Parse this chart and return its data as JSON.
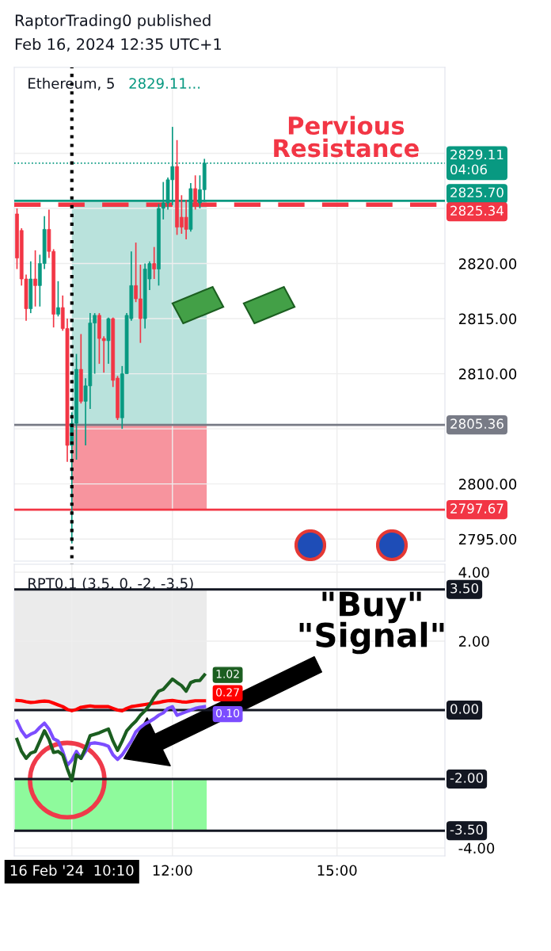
{
  "chart_data": [
    {
      "type": "candlestick",
      "title": "RaptorTrading0 published",
      "subtitle": "Feb 16, 2024 12:35 UTC+1",
      "annotations": [
        "Ethereum, 5",
        "2829.11...",
        "Pervious Resistance"
      ],
      "x": [
        "2024-02-16T09:10",
        "2024-02-16T09:15",
        "2024-02-16T09:20",
        "2024-02-16T09:25",
        "2024-02-16T09:30",
        "2024-02-16T09:35",
        "2024-02-16T09:40",
        "2024-02-16T09:45",
        "2024-02-16T09:50",
        "2024-02-16T09:55",
        "2024-02-16T10:00",
        "2024-02-16T10:05",
        "2024-02-16T10:10",
        "2024-02-16T10:15",
        "2024-02-16T10:20",
        "2024-02-16T10:25",
        "2024-02-16T10:30",
        "2024-02-16T10:35",
        "2024-02-16T10:40",
        "2024-02-16T10:45",
        "2024-02-16T10:50",
        "2024-02-16T10:55",
        "2024-02-16T11:00",
        "2024-02-16T11:05",
        "2024-02-16T11:10",
        "2024-02-16T11:15",
        "2024-02-16T11:20",
        "2024-02-16T11:25",
        "2024-02-16T11:30",
        "2024-02-16T11:35",
        "2024-02-16T11:40",
        "2024-02-16T11:45",
        "2024-02-16T11:50",
        "2024-02-16T11:55",
        "2024-02-16T12:00",
        "2024-02-16T12:05",
        "2024-02-16T12:10",
        "2024-02-16T12:15",
        "2024-02-16T12:20",
        "2024-02-16T12:25",
        "2024-02-16T12:30",
        "2024-02-16T12:35"
      ],
      "ohlc": [
        [
          2824.5,
          2825.0,
          2819.5,
          2820.5
        ],
        [
          2823.0,
          2823.2,
          2818.0,
          2818.6
        ],
        [
          2818.6,
          2819.0,
          2814.8,
          2815.9
        ],
        [
          2815.9,
          2820.2,
          2815.5,
          2818.6
        ],
        [
          2818.6,
          2821.2,
          2816.1,
          2818.0
        ],
        [
          2818.0,
          2820.8,
          2816.1,
          2820.0
        ],
        [
          2820.0,
          2824.3,
          2819.5,
          2823.1
        ],
        [
          2823.1,
          2824.9,
          2820.5,
          2821.1
        ],
        [
          2821.1,
          2821.3,
          2814.2,
          2815.4
        ],
        [
          2815.4,
          2818.4,
          2815.2,
          2816.0
        ],
        [
          2816.0,
          2817.1,
          2813.9,
          2814.1
        ],
        [
          2814.1,
          2815.0,
          2802.0,
          2803.5
        ],
        [
          2803.5,
          2806.5,
          2794.6,
          2805.5
        ],
        [
          2805.5,
          2811.8,
          2802.2,
          2810.4
        ],
        [
          2810.4,
          2813.6,
          2807.3,
          2807.5
        ],
        [
          2807.5,
          2809.6,
          2803.5,
          2808.9
        ],
        [
          2808.9,
          2815.5,
          2806.8,
          2814.6
        ],
        [
          2814.6,
          2815.5,
          2810.0,
          2815.3
        ],
        [
          2815.3,
          2815.5,
          2810.9,
          2813.2
        ],
        [
          2813.2,
          2813.4,
          2810.1,
          2813.0
        ],
        [
          2813.0,
          2815.1,
          2810.9,
          2815.0
        ],
        [
          2815.0,
          2815.1,
          2808.8,
          2809.4
        ],
        [
          2809.6,
          2809.8,
          2805.8,
          2806.0
        ],
        [
          2806.0,
          2810.7,
          2805.0,
          2810.0
        ],
        [
          2810.0,
          2815.5,
          2810.0,
          2815.3
        ],
        [
          2815.0,
          2821.1,
          2814.8,
          2818.0
        ],
        [
          2818.0,
          2821.9,
          2816.5,
          2816.8
        ],
        [
          2816.8,
          2819.9,
          2812.8,
          2815.0
        ],
        [
          2815.0,
          2820.0,
          2814.1,
          2819.5
        ],
        [
          2818.6,
          2820.2,
          2817.6,
          2820.0
        ],
        [
          2820.0,
          2821.5,
          2818.6,
          2819.5
        ],
        [
          2819.5,
          2825.4,
          2818.0,
          2825.0
        ],
        [
          2825.0,
          2827.4,
          2824.0,
          2825.5
        ],
        [
          2825.5,
          2827.8,
          2824.9,
          2827.6
        ],
        [
          2827.6,
          2832.4,
          2825.3,
          2828.8
        ],
        [
          2828.8,
          2831.2,
          2822.6,
          2823.3
        ],
        [
          2824.2,
          2826.2,
          2822.7,
          2823.3
        ],
        [
          2824.2,
          2825.8,
          2822.2,
          2823.1
        ],
        [
          2823.1,
          2827.3,
          2822.9,
          2826.8
        ],
        [
          2826.8,
          2828.0,
          2824.9,
          2825.5
        ],
        [
          2825.5,
          2828.0,
          2825.0,
          2826.7
        ],
        [
          2826.7,
          2829.5,
          2825.6,
          2829.11
        ]
      ],
      "colors": [
        "#f23645",
        "#f23645",
        "#f23645",
        "#089981",
        "#f23645",
        "#089981",
        "#089981",
        "#f23645",
        "#f23645",
        "#089981",
        "#f23645",
        "#f23645",
        "#089981",
        "#089981",
        "#f23645",
        "#089981",
        "#089981",
        "#089981",
        "#f23645",
        "#f23645",
        "#089981",
        "#f23645",
        "#f23645",
        "#089981",
        "#089981",
        "#089981",
        "#f23645",
        "#f23645",
        "#089981",
        "#089981",
        "#f23645",
        "#089981",
        "#089981",
        "#089981",
        "#089981",
        "#f23645",
        "#f23645",
        "#f23645",
        "#089981",
        "#f23645",
        "#089981",
        "#089981"
      ],
      "xlim": [
        "2024-02-16T09:07",
        "2024-02-16T16:58"
      ],
      "xticks": [
        {
          "value": "2024-02-16T12:00",
          "label": null
        },
        {
          "value": "2024-02-16T15:00",
          "label": null
        }
      ],
      "ylim": [
        2793.0,
        2837.8
      ],
      "yticks": [
        {
          "value": 2795,
          "label": "2795.00"
        },
        {
          "value": 2800,
          "label": "2800.00"
        },
        {
          "value": 2805,
          "label": null
        },
        {
          "value": 2810,
          "label": "2810.00"
        },
        {
          "value": 2815,
          "label": "2815.00"
        },
        {
          "value": 2820,
          "label": "2820.00"
        },
        {
          "value": 2825,
          "label": null
        },
        {
          "value": 2830,
          "label": null
        }
      ],
      "tick_labels": "y",
      "grid": true,
      "bands": [
        {
          "axis": "y",
          "from": 2805.36,
          "to": 2825.7,
          "color": "#b9e2dc"
        },
        {
          "axis": "y",
          "from": 2797.67,
          "to": 2805.36,
          "color": "#f7949e"
        }
      ],
      "ref_lines": [
        {
          "axis": "x",
          "value": "2024-02-16T10:10",
          "color": "#000000",
          "line_style": "dotted"
        },
        {
          "axis": "y",
          "value": 2829.11,
          "label": "2829.11\n04:06",
          "color": "#089981",
          "line_style": "dotted"
        },
        {
          "axis": "y",
          "value": 2825.7,
          "label": "2825.70",
          "color": "#089981",
          "line_style": "solid"
        },
        {
          "axis": "y",
          "value": 2825.34,
          "label": "2825.34",
          "color": "#f23645",
          "line_style": "dashed"
        },
        {
          "axis": "y",
          "value": 2805.36,
          "label": "2805.36",
          "color": "#787b86",
          "line_style": "solid"
        },
        {
          "axis": "y",
          "value": 2797.67,
          "label": "2797.67",
          "color": "#f23645",
          "line_style": "solid"
        }
      ]
    },
    {
      "type": "line",
      "title": "RPT0.1 (3.5, 0, -2, -3.5)",
      "annotations": [
        "\"Buy\"\n\"Signal\""
      ],
      "x": [
        "2024-02-16T09:10",
        "2024-02-16T09:15",
        "2024-02-16T09:20",
        "2024-02-16T09:25",
        "2024-02-16T09:30",
        "2024-02-16T09:35",
        "2024-02-16T09:40",
        "2024-02-16T09:45",
        "2024-02-16T09:50",
        "2024-02-16T09:55",
        "2024-02-16T10:00",
        "2024-02-16T10:05",
        "2024-02-16T10:10",
        "2024-02-16T10:15",
        "2024-02-16T10:20",
        "2024-02-16T10:25",
        "2024-02-16T10:30",
        "2024-02-16T10:35",
        "2024-02-16T10:40",
        "2024-02-16T10:45",
        "2024-02-16T10:50",
        "2024-02-16T10:55",
        "2024-02-16T11:00",
        "2024-02-16T11:05",
        "2024-02-16T11:10",
        "2024-02-16T11:15",
        "2024-02-16T11:20",
        "2024-02-16T11:25",
        "2024-02-16T11:30",
        "2024-02-16T11:35",
        "2024-02-16T11:40",
        "2024-02-16T11:45",
        "2024-02-16T11:50",
        "2024-02-16T11:55",
        "2024-02-16T12:00",
        "2024-02-16T12:05",
        "2024-02-16T12:10",
        "2024-02-16T12:15",
        "2024-02-16T12:20",
        "2024-02-16T12:25",
        "2024-02-16T12:30",
        "2024-02-16T12:35"
      ],
      "series": [
        {
          "color": "#ff0000",
          "values": [
            0.28,
            0.27,
            0.24,
            0.22,
            0.23,
            0.25,
            0.26,
            0.25,
            0.2,
            0.15,
            0.1,
            0.02,
            -0.02,
            0.02,
            0.08,
            0.1,
            0.12,
            0.1,
            0.1,
            0.1,
            0.1,
            0.05,
            0.0,
            -0.02,
            0.05,
            0.1,
            0.12,
            0.14,
            0.16,
            0.18,
            0.2,
            0.22,
            0.25,
            0.27,
            0.28,
            0.26,
            0.24,
            0.23,
            0.25,
            0.27,
            0.27,
            0.27
          ],
          "value_labels": [
            null,
            null,
            null,
            null,
            null,
            null,
            null,
            null,
            null,
            null,
            null,
            null,
            null,
            null,
            null,
            null,
            null,
            null,
            null,
            null,
            null,
            null,
            null,
            null,
            null,
            null,
            null,
            null,
            null,
            null,
            null,
            null,
            null,
            null,
            null,
            null,
            null,
            null,
            null,
            null,
            null,
            "0.27"
          ]
        },
        {
          "color": "#7c4dff",
          "values": [
            -0.32,
            -0.6,
            -0.78,
            -0.7,
            -0.64,
            -0.5,
            -0.38,
            -0.55,
            -0.83,
            -0.9,
            -1.2,
            -1.6,
            -1.45,
            -1.2,
            -1.4,
            -1.2,
            -0.97,
            -0.95,
            -0.97,
            -1.0,
            -1.05,
            -1.3,
            -1.43,
            -1.3,
            -1.1,
            -0.9,
            -0.63,
            -0.5,
            -0.4,
            -0.33,
            -0.25,
            -0.15,
            -0.08,
            0.05,
            0.1,
            -0.15,
            -0.1,
            -0.05,
            0.0,
            0.05,
            0.08,
            0.1
          ],
          "value_labels": [
            null,
            null,
            null,
            null,
            null,
            null,
            null,
            null,
            null,
            null,
            null,
            null,
            null,
            null,
            null,
            null,
            null,
            null,
            null,
            null,
            null,
            null,
            null,
            null,
            null,
            null,
            null,
            null,
            null,
            null,
            null,
            null,
            null,
            null,
            null,
            null,
            null,
            null,
            null,
            null,
            null,
            "0.10"
          ]
        },
        {
          "color": "#1b5e20",
          "values": [
            -0.85,
            -1.2,
            -1.4,
            -1.25,
            -1.2,
            -0.9,
            -0.6,
            -0.85,
            -1.23,
            -1.2,
            -1.3,
            -1.7,
            -2.05,
            -1.3,
            -1.4,
            -1.1,
            -0.74,
            -0.7,
            -0.66,
            -0.6,
            -0.55,
            -0.9,
            -1.17,
            -0.9,
            -0.6,
            -0.45,
            -0.32,
            -0.15,
            -0.02,
            0.15,
            0.37,
            0.55,
            0.6,
            0.75,
            0.9,
            0.8,
            0.71,
            0.55,
            0.8,
            0.85,
            0.86,
            1.02
          ],
          "value_labels": [
            null,
            null,
            null,
            null,
            null,
            null,
            null,
            null,
            null,
            null,
            null,
            null,
            null,
            null,
            null,
            null,
            null,
            null,
            null,
            null,
            null,
            null,
            null,
            null,
            null,
            null,
            null,
            null,
            null,
            null,
            null,
            null,
            null,
            null,
            null,
            null,
            null,
            null,
            null,
            null,
            null,
            "1.02"
          ]
        }
      ],
      "xlim": [
        "2024-02-16T09:07",
        "2024-02-16T16:58"
      ],
      "xticks": [
        {
          "value": "2024-02-16T10:10",
          "label": "16 Feb '24  10:10"
        },
        {
          "value": "2024-02-16T12:00",
          "label": "12:00"
        },
        {
          "value": "2024-02-16T15:00",
          "label": "15:00"
        }
      ],
      "ylim": [
        -4.23,
        4.23
      ],
      "yticks": [
        {
          "value": 4,
          "label": "4.00"
        },
        {
          "value": 2,
          "label": "2.00"
        },
        {
          "value": -4,
          "label": "-4.00"
        }
      ],
      "grid": true,
      "marker": "none",
      "line_style": "solid",
      "bands": [
        {
          "axis": "y",
          "from": 0,
          "to": 3.5,
          "color": "#ebebeb"
        },
        {
          "axis": "y",
          "from": -3.5,
          "to": -2,
          "color": "#8efa9c"
        }
      ],
      "ref_lines": [
        {
          "axis": "y",
          "value": 3.5,
          "label": "3.50",
          "color": "#131722",
          "line_style": "solid"
        },
        {
          "axis": "y",
          "value": 0,
          "label": "0.00",
          "color": "#131722",
          "line_style": "solid"
        },
        {
          "axis": "y",
          "value": -2,
          "label": "-2.00",
          "color": "#131722",
          "line_style": "solid"
        },
        {
          "axis": "y",
          "value": -3.5,
          "label": "-3.50",
          "color": "#131722",
          "line_style": "solid"
        }
      ]
    }
  ]
}
